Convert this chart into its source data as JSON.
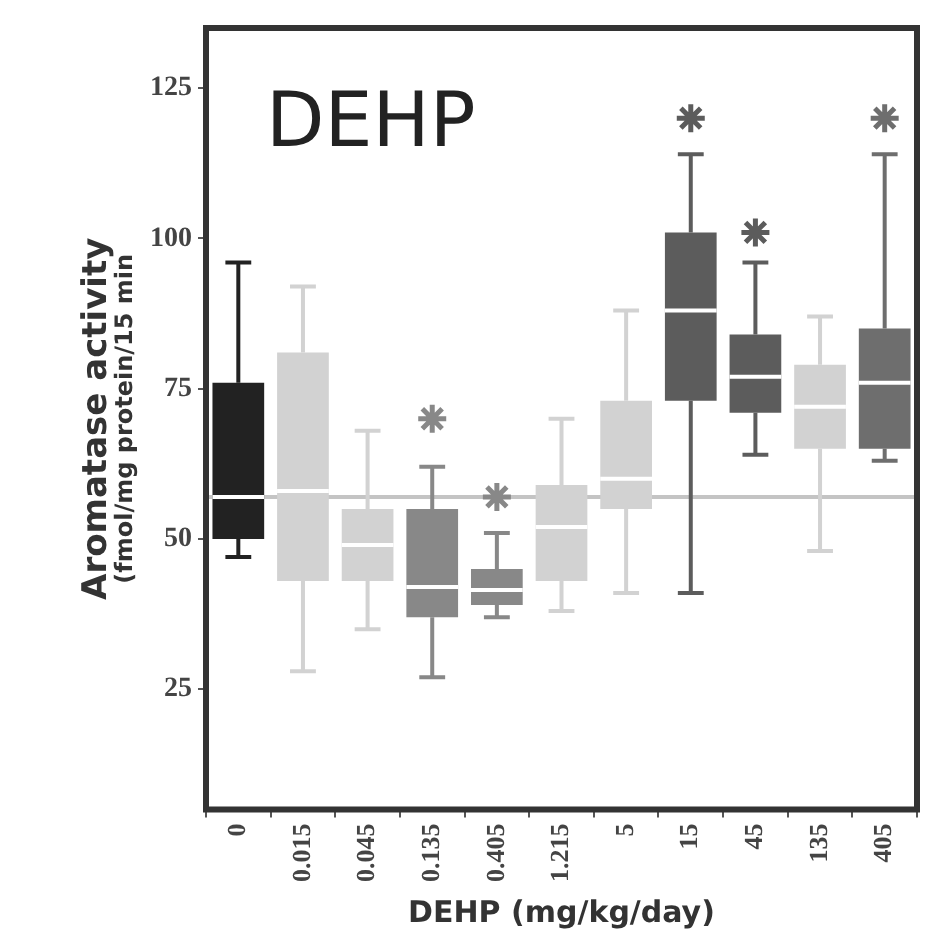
{
  "chart_data": {
    "type": "box",
    "title": "DEHP",
    "xlabel": "DEHP (mg/kg/day)",
    "ylabel": "Aromatase activity\n(fmol/mg protein/15 min",
    "categories": [
      "0",
      "0.015",
      "0.045",
      "0.135",
      "0.405",
      "1.215",
      "5",
      "15",
      "45",
      "135",
      "405"
    ],
    "boxes": [
      {
        "low": 47,
        "q1": 50,
        "median": 57,
        "q3": 76,
        "high": 96
      },
      {
        "low": 28,
        "q1": 43,
        "median": 58,
        "q3": 81,
        "high": 92
      },
      {
        "low": 35,
        "q1": 43,
        "median": 49,
        "q3": 55,
        "high": 68
      },
      {
        "low": 27,
        "q1": 37,
        "median": 42,
        "q3": 55,
        "high": 62,
        "outliers": [
          70
        ]
      },
      {
        "low": 37,
        "q1": 39,
        "median": 41.5,
        "q3": 45,
        "high": 51,
        "outliers": [
          57
        ]
      },
      {
        "low": 38,
        "q1": 43,
        "median": 52,
        "q3": 59,
        "high": 70
      },
      {
        "low": 41,
        "q1": 55,
        "median": 60,
        "q3": 73,
        "high": 88
      },
      {
        "low": 41,
        "q1": 73,
        "median": 88,
        "q3": 101,
        "high": 114,
        "outliers": [
          120
        ]
      },
      {
        "low": 64,
        "q1": 71,
        "median": 77,
        "q3": 84,
        "high": 96,
        "outliers": [
          101
        ]
      },
      {
        "low": 48,
        "q1": 65,
        "median": 72,
        "q3": 79,
        "high": 87
      },
      {
        "low": 63,
        "q1": 65,
        "median": 76,
        "q3": 85,
        "high": 114,
        "outliers": [
          120
        ]
      }
    ],
    "colors": [
      "#222222",
      "#d2d2d2",
      "#d2d2d2",
      "#888888",
      "#888888",
      "#d2d2d2",
      "#d2d2d2",
      "#5c5c5c",
      "#5c5c5c",
      "#d2d2d2",
      "#6e6e6e"
    ],
    "ylim": [
      5,
      135
    ],
    "yticks": [
      25,
      50,
      75,
      100,
      125
    ],
    "grid": false,
    "legend": false,
    "ref_lines": [
      {
        "axis": "y",
        "value": 57,
        "color": "#c4c4c4"
      }
    ]
  }
}
